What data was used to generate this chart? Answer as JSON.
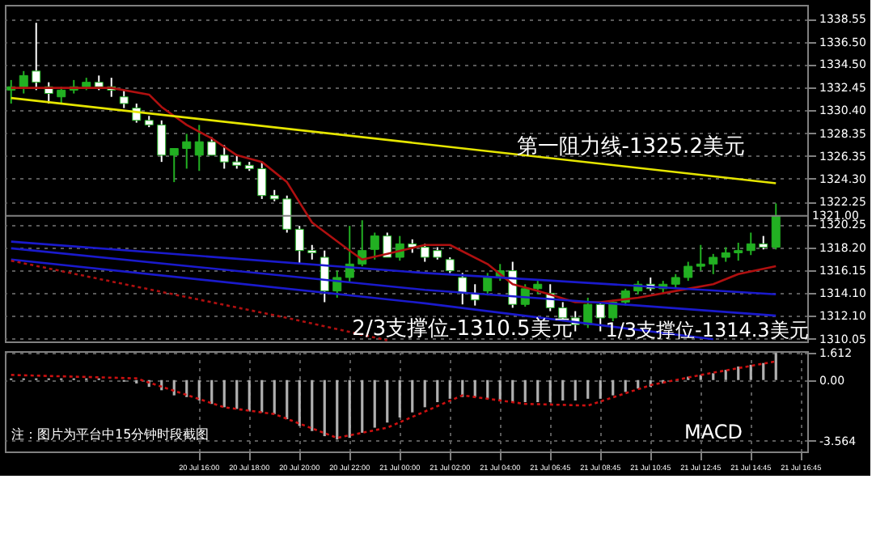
{
  "chart_data": [
    {
      "type": "candlestick",
      "categories": [
        null,
        null,
        null,
        null,
        null,
        null,
        null,
        null,
        null,
        null,
        null,
        null,
        null,
        null,
        null,
        null,
        null,
        null,
        null,
        null,
        null,
        null,
        null,
        null,
        null,
        null,
        null,
        null,
        null,
        null,
        null,
        null,
        null,
        null,
        null,
        null,
        null,
        null,
        null,
        null,
        null,
        null,
        null,
        null,
        null,
        null,
        null,
        null,
        null,
        null,
        null,
        null,
        null,
        null,
        null,
        null,
        null,
        null,
        null,
        null,
        null,
        null,
        null,
        null
      ],
      "ohlc": [
        [
          1332.2,
          1333.1,
          1331.0,
          1332.5
        ],
        [
          1332.5,
          1333.9,
          1331.9,
          1333.5
        ],
        [
          1333.9,
          1338.2,
          1332.2,
          1332.9
        ],
        [
          1332.5,
          1332.9,
          1331.0,
          1331.9
        ],
        [
          1331.6,
          1332.5,
          1331.0,
          1332.2
        ],
        [
          1332.2,
          1333.1,
          1331.9,
          1332.5
        ],
        [
          1332.5,
          1333.3,
          1332.2,
          1332.9
        ],
        [
          1332.9,
          1333.5,
          1332.2,
          1332.5
        ],
        [
          1332.5,
          1333.3,
          1331.6,
          1332.2
        ],
        [
          1331.6,
          1332.2,
          1330.6,
          1331.0
        ],
        [
          1330.6,
          1331.0,
          1329.3,
          1329.5
        ],
        [
          1329.5,
          1329.9,
          1328.9,
          1329.1
        ],
        [
          1329.1,
          1329.5,
          1325.8,
          1326.4
        ],
        [
          1326.4,
          1327.0,
          1324.0,
          1327.0
        ],
        [
          1327.0,
          1328.3,
          1325.2,
          1327.6
        ],
        [
          1326.4,
          1329.1,
          1325.0,
          1327.6
        ],
        [
          1327.6,
          1328.0,
          1326.4,
          1326.4
        ],
        [
          1326.4,
          1327.3,
          1325.2,
          1325.8
        ],
        [
          1325.8,
          1326.4,
          1325.2,
          1325.5
        ],
        [
          1325.5,
          1325.8,
          1325.0,
          1325.2
        ],
        [
          1325.2,
          1325.8,
          1322.5,
          1322.8
        ],
        [
          1322.8,
          1323.3,
          1322.3,
          1322.5
        ],
        [
          1322.5,
          1322.8,
          1319.5,
          1319.8
        ],
        [
          1319.8,
          1320.1,
          1316.7,
          1317.9
        ],
        [
          1317.9,
          1318.4,
          1317.1,
          1317.7
        ],
        [
          1317.3,
          1317.9,
          1313.3,
          1314.3
        ],
        [
          1314.3,
          1316.1,
          1313.7,
          1315.5
        ],
        [
          1315.5,
          1320.1,
          1315.0,
          1316.7
        ],
        [
          1316.7,
          1320.6,
          1316.5,
          1317.9
        ],
        [
          1318.0,
          1319.5,
          1317.1,
          1319.2
        ],
        [
          1319.2,
          1319.5,
          1317.3,
          1317.3
        ],
        [
          1317.3,
          1319.2,
          1317.0,
          1318.5
        ],
        [
          1318.5,
          1318.9,
          1317.7,
          1318.2
        ],
        [
          1318.2,
          1318.5,
          1316.9,
          1317.3
        ],
        [
          1317.9,
          1318.2,
          1317.1,
          1317.3
        ],
        [
          1317.1,
          1317.3,
          1315.9,
          1316.1
        ],
        [
          1315.5,
          1315.9,
          1313.1,
          1314.1
        ],
        [
          1314.1,
          1314.9,
          1313.0,
          1313.5
        ],
        [
          1314.3,
          1315.9,
          1313.9,
          1315.5
        ],
        [
          1315.5,
          1316.7,
          1315.2,
          1316.1
        ],
        [
          1316.1,
          1316.9,
          1312.8,
          1313.1
        ],
        [
          1313.1,
          1314.9,
          1312.9,
          1314.5
        ],
        [
          1314.5,
          1315.2,
          1314.0,
          1314.9
        ],
        [
          1314.1,
          1314.9,
          1312.5,
          1312.8
        ],
        [
          1312.8,
          1313.3,
          1311.6,
          1311.9
        ],
        [
          1311.9,
          1312.5,
          1310.7,
          1311.3
        ],
        [
          1311.3,
          1313.7,
          1311.0,
          1313.1
        ],
        [
          1313.1,
          1313.3,
          1310.7,
          1311.9
        ],
        [
          1311.9,
          1313.5,
          1311.6,
          1313.3
        ],
        [
          1313.3,
          1314.5,
          1313.0,
          1314.3
        ],
        [
          1314.3,
          1315.2,
          1314.0,
          1314.9
        ],
        [
          1314.9,
          1315.5,
          1314.3,
          1314.5
        ],
        [
          1314.5,
          1315.2,
          1314.1,
          1314.9
        ],
        [
          1314.9,
          1315.8,
          1314.5,
          1315.5
        ],
        [
          1315.5,
          1316.9,
          1315.2,
          1316.5
        ],
        [
          1316.5,
          1318.4,
          1316.1,
          1316.7
        ],
        [
          1316.7,
          1317.6,
          1315.8,
          1317.3
        ],
        [
          1317.3,
          1318.2,
          1316.9,
          1317.7
        ],
        [
          1317.7,
          1318.6,
          1317.0,
          1317.9
        ],
        [
          1317.9,
          1319.5,
          1317.5,
          1318.5
        ],
        [
          1318.5,
          1319.2,
          1318.0,
          1318.2
        ],
        [
          1318.2,
          1322.1,
          1318.0,
          1321.0
        ],
        null,
        null
      ],
      "colors": [
        "#22b022",
        "#22b022",
        "#ffffff",
        "#ffffff",
        "#22b022",
        "#22b022",
        "#22b022",
        "#ffffff",
        "#ffffff",
        "#ffffff",
        "#ffffff",
        "#ffffff",
        "#ffffff",
        "#22b022",
        "#22b022",
        "#22b022",
        "#ffffff",
        "#ffffff",
        "#ffffff",
        "#ffffff",
        "#ffffff",
        "#ffffff",
        "#ffffff",
        "#ffffff",
        "#ffffff",
        "#ffffff",
        "#22b022",
        "#22b022",
        "#22b022",
        "#22b022",
        "#ffffff",
        "#22b022",
        "#ffffff",
        "#ffffff",
        "#ffffff",
        "#ffffff",
        "#ffffff",
        "#ffffff",
        "#22b022",
        "#22b022",
        "#ffffff",
        "#22b022",
        "#22b022",
        "#ffffff",
        "#ffffff",
        "#ffffff",
        "#22b022",
        "#ffffff",
        "#22b022",
        "#22b022",
        "#22b022",
        "#ffffff",
        "#22b022",
        "#22b022",
        "#22b022",
        "#22b022",
        "#22b022",
        "#22b022",
        "#22b022",
        "#22b022",
        "#ffffff",
        "#22b022",
        null,
        null
      ],
      "series": [
        {
          "type": "line",
          "color": "#b01010",
          "values": [
            1332.4,
            null,
            null,
            null,
            null,
            null,
            null,
            null,
            1332.4,
            null,
            null,
            1331.8,
            1330.7,
            null,
            1329.1,
            null,
            1327.9,
            null,
            1326.4,
            null,
            1325.8,
            null,
            1324.0,
            null,
            1320.4,
            null,
            null,
            1317.9,
            1317.1,
            null,
            1317.6,
            null,
            null,
            1318.4,
            null,
            1318.4,
            null,
            null,
            1316.7,
            null,
            1314.9,
            null,
            1314.3,
            null,
            null,
            1313.3,
            null,
            1313.3,
            null,
            null,
            1313.7,
            null,
            null,
            1314.3,
            null,
            null,
            1314.9,
            null,
            1315.8,
            null,
            null,
            1316.5,
            null,
            null
          ]
        },
        {
          "type": "line",
          "color": "#e6e600",
          "values": [
            1331.5,
            null,
            null,
            null,
            null,
            null,
            null,
            null,
            null,
            null,
            null,
            null,
            null,
            null,
            null,
            null,
            null,
            null,
            null,
            null,
            null,
            null,
            null,
            null,
            null,
            null,
            null,
            null,
            null,
            null,
            null,
            null,
            null,
            null,
            null,
            null,
            null,
            null,
            null,
            null,
            null,
            null,
            null,
            null,
            null,
            null,
            null,
            null,
            null,
            null,
            null,
            null,
            null,
            null,
            null,
            null,
            null,
            null,
            null,
            null,
            null,
            1323.9,
            null,
            null
          ]
        },
        {
          "type": "line",
          "color": "#1a1acc",
          "values": [
            1318.7,
            null,
            null,
            null,
            null,
            null,
            null,
            null,
            null,
            null,
            null,
            null,
            null,
            null,
            null,
            null,
            null,
            null,
            null,
            null,
            null,
            null,
            null,
            null,
            null,
            null,
            null,
            null,
            null,
            null,
            null,
            null,
            null,
            1315.9,
            null,
            null,
            null,
            null,
            null,
            null,
            null,
            null,
            null,
            null,
            null,
            null,
            null,
            null,
            null,
            null,
            null,
            null,
            null,
            null,
            null,
            null,
            null,
            null,
            null,
            null,
            null,
            1314.0,
            null,
            null
          ]
        },
        {
          "type": "line",
          "color": "#1a1acc",
          "values": [
            1318.1,
            null,
            null,
            null,
            null,
            null,
            null,
            null,
            null,
            null,
            null,
            null,
            null,
            null,
            null,
            null,
            null,
            null,
            null,
            null,
            null,
            null,
            null,
            null,
            null,
            null,
            null,
            null,
            null,
            null,
            null,
            null,
            null,
            1314.4,
            null,
            null,
            null,
            null,
            null,
            null,
            null,
            null,
            null,
            null,
            null,
            null,
            null,
            null,
            null,
            null,
            null,
            null,
            null,
            null,
            null,
            null,
            null,
            null,
            null,
            null,
            null,
            1312.1,
            null,
            null
          ]
        },
        {
          "type": "line",
          "color": "#1a1acc",
          "values": [
            1317.1,
            null,
            null,
            null,
            null,
            null,
            null,
            null,
            null,
            null,
            null,
            null,
            null,
            null,
            null,
            null,
            null,
            null,
            null,
            null,
            null,
            null,
            null,
            null,
            null,
            null,
            null,
            null,
            null,
            null,
            null,
            null,
            null,
            1313.2,
            null,
            null,
            null,
            null,
            null,
            null,
            null,
            null,
            null,
            null,
            null,
            null,
            null,
            null,
            null,
            null,
            null,
            null,
            null,
            null,
            null,
            null,
            1310.0,
            null,
            null,
            null,
            null,
            null,
            null,
            null
          ]
        },
        {
          "type": "line",
          "color": "#b01010",
          "line_style": "dotted",
          "values": [
            1317.0,
            null,
            null,
            null,
            null,
            null,
            null,
            null,
            null,
            null,
            null,
            null,
            null,
            null,
            null,
            null,
            null,
            null,
            null,
            null,
            null,
            null,
            1311.9,
            null,
            null,
            null,
            null,
            null,
            null,
            null,
            1309.9,
            null,
            null,
            null,
            null,
            null,
            null,
            null,
            null,
            null,
            null,
            null,
            null,
            null,
            null,
            null,
            null,
            null,
            null,
            null,
            null,
            null,
            null,
            null,
            null,
            null,
            null,
            null,
            null,
            null,
            null,
            null,
            null,
            null
          ]
        }
      ],
      "ylim": [
        1309.8,
        1339.8
      ],
      "yticks": [
        {
          "value": 1310.05,
          "label": "1310.05"
        },
        {
          "value": 1312.1,
          "label": "1312.10"
        },
        {
          "value": 1314.1,
          "label": "1314.10"
        },
        {
          "value": 1316.15,
          "label": "1316.15"
        },
        {
          "value": 1318.2,
          "label": "1318.20"
        },
        {
          "value": 1320.25,
          "label": "1320.25"
        },
        {
          "value": 1322.25,
          "label": "1322.25"
        },
        {
          "value": 1324.3,
          "label": "1324.30"
        },
        {
          "value": 1326.35,
          "label": "1326.35"
        },
        {
          "value": 1328.35,
          "label": "1328.35"
        },
        {
          "value": 1330.4,
          "label": "1330.40"
        },
        {
          "value": 1332.45,
          "label": "1332.45"
        },
        {
          "value": 1334.5,
          "label": "1334.50"
        },
        {
          "value": 1336.5,
          "label": "1336.50"
        },
        {
          "value": 1338.55,
          "label": "1338.55"
        }
      ],
      "ref_lines": [
        {
          "axis": "y",
          "value": 1321.0,
          "label": "1321.00",
          "color": "#808080"
        }
      ],
      "annotations": [
        "第一阻力线-1325.2美元",
        "1/3支撑位-1314.3美元",
        "2/3支撑位-1310.5美元"
      ],
      "grid": true,
      "tick_labels": "y"
    },
    {
      "type": "bar",
      "categories": [
        null,
        null,
        null,
        null,
        null,
        null,
        null,
        null,
        null,
        null,
        null,
        null,
        null,
        null,
        null,
        "20 Jul 16:00",
        null,
        null,
        null,
        "20 Jul 18:00",
        null,
        null,
        null,
        "20 Jul 20:00",
        null,
        null,
        null,
        "20 Jul 22:00",
        null,
        null,
        null,
        "21 Jul 00:00",
        null,
        null,
        null,
        "21 Jul 02:00",
        null,
        null,
        null,
        "21 Jul 04:00",
        null,
        null,
        null,
        "21 Jul 06:45",
        null,
        null,
        null,
        "21 Jul 08:45",
        null,
        null,
        null,
        "21 Jul 10:45",
        null,
        null,
        null,
        "21 Jul 12:45",
        null,
        null,
        null,
        "21 Jul 14:45",
        null,
        null,
        null,
        "21 Jul 16:45"
      ],
      "series": [
        {
          "type": "bar",
          "color": "#b0b0b0",
          "values": [
            0.1,
            0.1,
            0.1,
            0.1,
            0.1,
            0.1,
            0.1,
            0.1,
            0,
            -0.1,
            -0.2,
            -0.4,
            -0.6,
            -0.9,
            -1.0,
            -1.2,
            -1.4,
            -1.6,
            -1.7,
            -1.8,
            -1.9,
            -2.0,
            -2.3,
            -2.7,
            -3.0,
            -3.3,
            -3.5,
            -3.4,
            -3.1,
            -2.8,
            -2.5,
            -2.2,
            -1.9,
            -1.6,
            -1.3,
            -1.1,
            -1.0,
            -1.0,
            -1.1,
            -1.2,
            -1.3,
            -1.3,
            -1.3,
            -1.3,
            -1.2,
            -1.2,
            -1.1,
            -1.1,
            -0.9,
            -0.7,
            -0.5,
            -0.4,
            -0.2,
            0.0,
            0.2,
            0.3,
            0.4,
            0.6,
            0.8,
            0.9,
            1.0,
            1.6,
            null,
            null
          ]
        },
        {
          "type": "line",
          "color": "#cc1010",
          "line_style": "dotted",
          "values": [
            0.3,
            null,
            null,
            null,
            null,
            null,
            null,
            null,
            null,
            null,
            0.1,
            null,
            null,
            null,
            null,
            null,
            null,
            -1.6,
            null,
            null,
            null,
            -2.0,
            null,
            null,
            null,
            null,
            -3.4,
            null,
            null,
            null,
            -2.8,
            null,
            null,
            null,
            null,
            null,
            -0.9,
            null,
            null,
            null,
            null,
            -1.4,
            null,
            null,
            null,
            null,
            -1.5,
            null,
            null,
            null,
            null,
            -0.3,
            null,
            null,
            null,
            0.3,
            null,
            null,
            null,
            null,
            null,
            1.1,
            null,
            null
          ]
        }
      ],
      "ylim": [
        -4.2,
        1.7
      ],
      "yticks": [
        -3.564,
        {
          "value": 0,
          "label": "0.00"
        },
        1.612
      ],
      "annotations": [
        "注：图片为平台中15分钟时段截图",
        "MACD"
      ],
      "grid": true
    }
  ]
}
